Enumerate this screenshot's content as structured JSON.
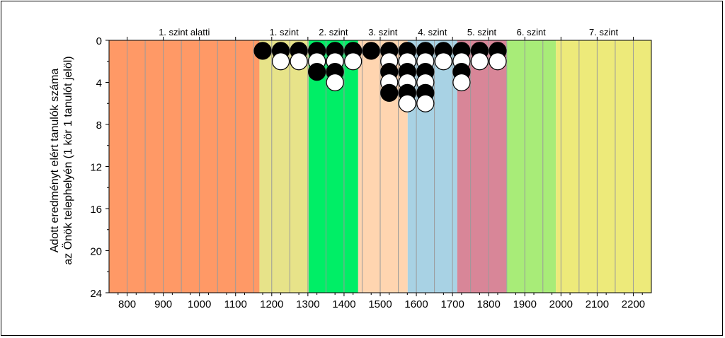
{
  "chart_data": {
    "type": "scatter",
    "ylabel_line1": "Adott eredményt elért tanulók száma",
    "ylabel_line2": "az Önök telephelyén (1 kör 1 tanulót jelöl)",
    "xlim": [
      750,
      2250
    ],
    "ylim": [
      0,
      24
    ],
    "y_inverted": true,
    "x_ticks": [
      800,
      900,
      1000,
      1100,
      1200,
      1300,
      1400,
      1500,
      1600,
      1700,
      1800,
      1900,
      2000,
      2100,
      2200
    ],
    "y_ticks": [
      0,
      4,
      8,
      12,
      16,
      20,
      24
    ],
    "bands": [
      {
        "label": "1. szint alatti",
        "from": 750,
        "to": 1166,
        "color": "#FF9966"
      },
      {
        "label": "1. szint",
        "from": 1166,
        "to": 1302,
        "color": "#E7E389"
      },
      {
        "label": "2. szint",
        "from": 1302,
        "to": 1439,
        "color": "#00EE66"
      },
      {
        "label": "3. szint",
        "from": 1439,
        "to": 1576,
        "color": "#FFD5B0"
      },
      {
        "label": "4. szint",
        "from": 1576,
        "to": 1713,
        "color": "#A8D2E4"
      },
      {
        "label": "5. szint",
        "from": 1713,
        "to": 1849,
        "color": "#D88698"
      },
      {
        "label": "6. szint",
        "from": 1849,
        "to": 1986,
        "color": "#A8EC78"
      },
      {
        "label": "7. szint",
        "from": 1986,
        "to": 2250,
        "color": "#EDEA7A"
      }
    ],
    "columns": [
      {
        "x": 1175,
        "count": 1
      },
      {
        "x": 1225,
        "count": 2
      },
      {
        "x": 1275,
        "count": 2
      },
      {
        "x": 1325,
        "count": 3
      },
      {
        "x": 1375,
        "count": 4
      },
      {
        "x": 1425,
        "count": 2
      },
      {
        "x": 1475,
        "count": 1
      },
      {
        "x": 1525,
        "count": 5
      },
      {
        "x": 1575,
        "count": 6
      },
      {
        "x": 1625,
        "count": 6
      },
      {
        "x": 1675,
        "count": 2
      },
      {
        "x": 1725,
        "count": 4
      },
      {
        "x": 1775,
        "count": 2
      },
      {
        "x": 1825,
        "count": 2
      }
    ],
    "marker_colors": {
      "odd": "#000000",
      "even": "#ffffff"
    },
    "gridline_color": "#9a9a9a"
  }
}
